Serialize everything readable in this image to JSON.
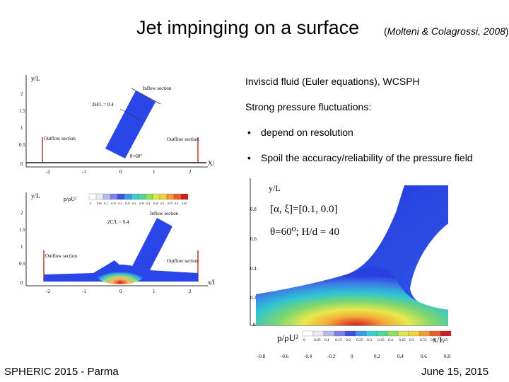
{
  "slide": {
    "title": "Jet impinging on a surface",
    "citation_open": "(",
    "citation_text": "Molteni & Colagrossi, 2008",
    "citation_close": ")",
    "bullet_1": "Inviscid fluid (Euler equations), WCSPH",
    "bullet_2": "Strong pressure fluctuations:",
    "sub_bullets": [
      {
        "marker": "•",
        "text": "depend on resolution"
      },
      {
        "marker": "•",
        "text": "Spoil the accuracy/reliability of the pressure field"
      }
    ],
    "footer_left": "SPHERIC 2015 - Parma",
    "footer_right": "June 15, 2015"
  },
  "fig_top": {
    "yaxis": "y/L",
    "xaxis": "X/L",
    "yticks": [
      "2",
      "1.5",
      "1",
      "0.5",
      "0"
    ],
    "xticks": [
      "-2",
      "-1",
      "0",
      "1",
      "2"
    ],
    "inflow_label": "Inflow section",
    "jet_label": "2H/L = 0.4",
    "outflow_left": "Outflow section",
    "outflow_right": "Outflow section",
    "angle_label": "θ=60°"
  },
  "fig_mid": {
    "yaxis": "y/L",
    "xaxis": "x/L",
    "colorbar_label": "p/ρU²",
    "colorbar_ticks": [
      "0",
      "0.05",
      "0.1",
      "0.15",
      "0.2",
      "0.25",
      "0.3",
      "0.35",
      "0.4",
      "0.45",
      "0.5",
      "0.55",
      "0.6",
      "0.65"
    ],
    "yticks": [
      "2",
      "1.5",
      "1",
      "0.5",
      "0"
    ],
    "xticks": [
      "-2",
      "-1",
      "0",
      "1",
      "2"
    ],
    "inflow_label": "Inflow section",
    "jet_label": "2C/L = 0.4",
    "outflow_left": "Outflow section",
    "outflow_right": "Outflow section"
  },
  "fig_right": {
    "yaxis": "y/L",
    "xaxis": "x/L",
    "param_line": "[α, ξ]=[0.1, 0.0]",
    "theta_line": "θ=60⁰; H/d = 40",
    "colorbar_label": "p/ρU²",
    "colorbar_ticks": [
      "0",
      "0.05",
      "0.1",
      "0.15",
      "0.2",
      "0.25",
      "0.3",
      "0.35",
      "0.4",
      "0.45",
      "0.5",
      "0.55",
      "0.6",
      "0.65"
    ],
    "yticks": [
      "0.8",
      "0.6",
      "0.4",
      "0.2",
      "0"
    ],
    "xticks": [
      "-0.8",
      "-0.6",
      "-0.4",
      "-0.2",
      "0",
      "0.2",
      "0.4",
      "0.6",
      "0.8"
    ]
  },
  "colors": {
    "jet_blue": "#2a46e8",
    "deep_blue": "#1c2fd8"
  }
}
